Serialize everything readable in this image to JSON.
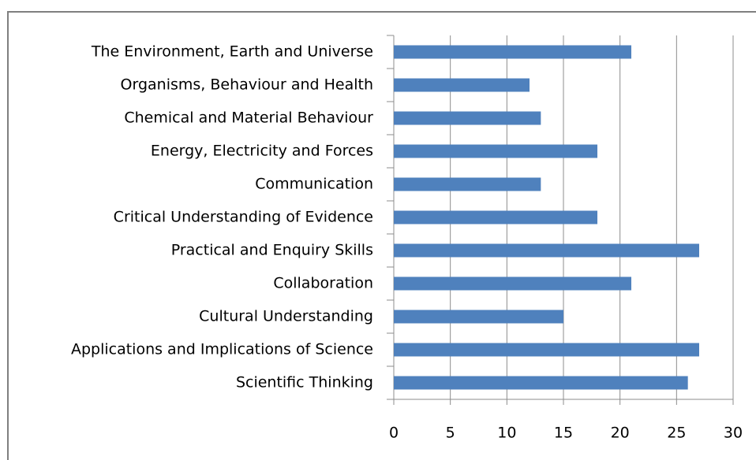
{
  "chart_data": {
    "type": "bar",
    "orientation": "horizontal",
    "categories": [
      "The Environment, Earth and Universe",
      "Organisms, Behaviour and Health",
      "Chemical and Material Behaviour",
      "Energy, Electricity and Forces",
      "Communication",
      "Critical Understanding of Evidence",
      "Practical and Enquiry Skills",
      "Collaboration",
      "Cultural Understanding",
      "Applications and Implications of Science",
      "Scientific Thinking"
    ],
    "values": [
      21,
      12,
      13,
      18,
      13,
      18,
      27,
      21,
      15,
      27,
      26
    ],
    "color": "#4f81bd",
    "xlim": [
      0,
      30
    ],
    "xticks": [
      0,
      5,
      10,
      15,
      20,
      25,
      30
    ],
    "grid": true
  }
}
